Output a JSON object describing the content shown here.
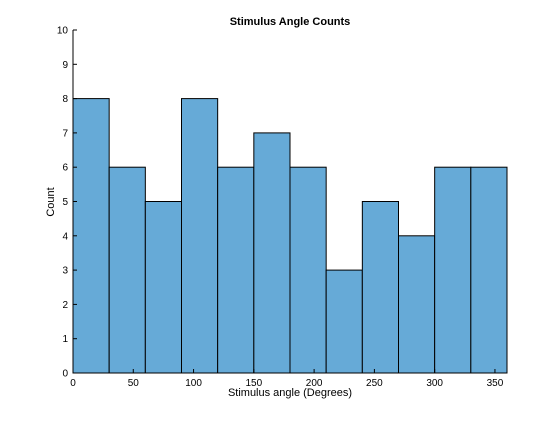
{
  "chart_data": {
    "type": "bar",
    "title": "Stimulus Angle Counts",
    "xlabel": "Stimulus angle (Degrees)",
    "ylabel": "Count",
    "bin_edges": [
      0,
      30,
      60,
      90,
      120,
      150,
      180,
      210,
      240,
      270,
      300,
      330,
      360
    ],
    "values": [
      8,
      6,
      5,
      8,
      6,
      7,
      6,
      3,
      5,
      4,
      6,
      6
    ],
    "xlim": [
      0,
      360
    ],
    "ylim": [
      0,
      10
    ],
    "xticks": [
      0,
      50,
      100,
      150,
      200,
      250,
      300,
      350
    ],
    "yticks": [
      0,
      1,
      2,
      3,
      4,
      5,
      6,
      7,
      8,
      9,
      10
    ],
    "grid": false,
    "colors": {
      "bar_fill": "#66aad7",
      "bar_edge": "#000000",
      "axis": "#000000"
    }
  }
}
